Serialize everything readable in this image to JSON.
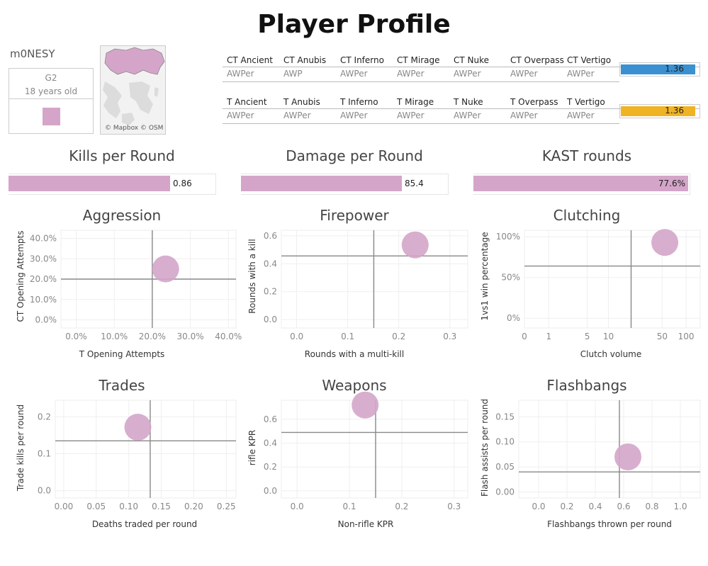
{
  "page": {
    "title": "Player Profile"
  },
  "player": {
    "name": "m0NESY",
    "team": "G2",
    "age": "18 years old",
    "color": "#d4a5c9"
  },
  "map": {
    "credit": "© Mapbox © OSM",
    "country_fill": "#d4a5c9"
  },
  "role_table": {
    "ct_headers": [
      "CT Ancient",
      "CT Anubis",
      "CT Inferno",
      "CT Mirage",
      "CT Nuke",
      "CT Overpass",
      "CT Vertigo"
    ],
    "ct_values": [
      "AWPer",
      "AWP",
      "AWPer",
      "AWPer",
      "AWPer",
      "AWPer",
      "AWPer"
    ],
    "ct_rating": {
      "value": 1.36,
      "label": "1.36",
      "color": "#3a90d0"
    },
    "t_headers": [
      "T Ancient",
      "T Anubis",
      "T Inferno",
      "T Mirage",
      "T Nuke",
      "T Overpass",
      "T Vertigo"
    ],
    "t_values": [
      "AWPer",
      "AWPer",
      "AWPer",
      "AWPer",
      "AWPer",
      "AWPer",
      "AWPer"
    ],
    "t_rating": {
      "value": 1.36,
      "label": "1.36",
      "color": "#f0b323"
    },
    "rating_max": 1.4
  },
  "chart_data": [
    {
      "type": "bar",
      "title": "Kills per Round",
      "values": [
        0.86
      ],
      "value_label": "0.86",
      "xlim": [
        0,
        1.1
      ],
      "color": "#d4a5c9",
      "label_inside": false
    },
    {
      "type": "bar",
      "title": "Damage per Round",
      "values": [
        85.4
      ],
      "value_label": "85.4",
      "xlim": [
        0,
        110
      ],
      "color": "#d4a5c9",
      "label_inside": false
    },
    {
      "type": "bar",
      "title": "KAST rounds",
      "values": [
        77.6
      ],
      "value_label": "77.6%",
      "xlim": [
        0,
        78
      ],
      "color": "#d4a5c9",
      "label_inside": true
    },
    {
      "type": "scatter",
      "title": "Aggression",
      "xlabel": "T Opening Attempts",
      "ylabel": "CT Opening Attempts",
      "xlim": [
        -4,
        42
      ],
      "ylim": [
        -4,
        44
      ],
      "scale": "linear",
      "xticks": [
        0,
        10,
        20,
        30,
        40
      ],
      "xtick_labels": [
        "0.0%",
        "10.0%",
        "20.0%",
        "30.0%",
        "40.0%"
      ],
      "yticks": [
        0,
        10,
        20,
        30,
        40
      ],
      "ytick_labels": [
        "0.0%",
        "10.0%",
        "20.0%",
        "30.0%",
        "40.0%"
      ],
      "point": [
        23.5,
        25
      ],
      "ref_x": 20.0,
      "ref_y": 20.0
    },
    {
      "type": "scatter",
      "title": "Firepower",
      "xlabel": "Rounds with a multi-kill",
      "ylabel": "Rounds with a kill",
      "xlim": [
        -0.03,
        0.335
      ],
      "ylim": [
        -0.06,
        0.64
      ],
      "scale": "linear",
      "xticks": [
        0,
        0.1,
        0.2,
        0.3
      ],
      "xtick_labels": [
        "0.0",
        "0.1",
        "0.2",
        "0.3"
      ],
      "yticks": [
        0,
        0.2,
        0.4,
        0.6
      ],
      "ytick_labels": [
        "0.0",
        "0.2",
        "0.4",
        "0.6"
      ],
      "point": [
        0.232,
        0.535
      ],
      "ref_x": 0.151,
      "ref_y": 0.456
    },
    {
      "type": "scatter",
      "title": "Clutching",
      "xlabel": "Clutch volume",
      "ylabel": "1vs1 win percentage",
      "xlim": [
        0,
        150
      ],
      "ylim": [
        -0.12,
        1.08
      ],
      "scale": "symlog",
      "xticks": [
        0,
        1,
        5,
        10,
        50,
        100
      ],
      "xtick_labels": [
        "0",
        "1",
        "5",
        "10",
        "50",
        "100"
      ],
      "yticks": [
        0,
        0.5,
        1.0
      ],
      "ytick_labels": [
        "0%",
        "50%",
        "100%"
      ],
      "point": [
        54,
        0.93
      ],
      "ref_x": 20,
      "ref_y": 0.64
    },
    {
      "type": "scatter",
      "title": "Trades",
      "xlabel": "Deaths traded per round",
      "ylabel": "Trade kills per round",
      "xlim": [
        -0.013,
        0.265
      ],
      "ylim": [
        -0.02,
        0.245
      ],
      "scale": "linear",
      "xticks": [
        0,
        0.05,
        0.1,
        0.15,
        0.2,
        0.25
      ],
      "xtick_labels": [
        "0.00",
        "0.05",
        "0.10",
        "0.15",
        "0.20",
        "0.25"
      ],
      "yticks": [
        0,
        0.1,
        0.2
      ],
      "ytick_labels": [
        "0.0",
        "0.1",
        "0.2"
      ],
      "point": [
        0.114,
        0.172
      ],
      "ref_x": 0.133,
      "ref_y": 0.135
    },
    {
      "type": "scatter",
      "title": "Weapons",
      "xlabel": "Non-rifle KPR",
      "ylabel": "rifle KPR",
      "xlim": [
        -0.03,
        0.326
      ],
      "ylim": [
        -0.06,
        0.76
      ],
      "scale": "linear",
      "xticks": [
        0,
        0.1,
        0.2,
        0.3
      ],
      "xtick_labels": [
        "0.0",
        "0.1",
        "0.2",
        "0.3"
      ],
      "yticks": [
        0,
        0.2,
        0.4,
        0.6
      ],
      "ytick_labels": [
        "0.0",
        "0.2",
        "0.4",
        "0.6"
      ],
      "point": [
        0.13,
        0.72
      ],
      "ref_x": 0.15,
      "ref_y": 0.49
    },
    {
      "type": "scatter",
      "title": "Flashbangs",
      "xlabel": "Flashbangs thrown per round",
      "ylabel": "Flash assists per round",
      "xlim": [
        -0.14,
        1.14
      ],
      "ylim": [
        -0.012,
        0.183
      ],
      "scale": "linear",
      "xticks": [
        0,
        0.2,
        0.4,
        0.6,
        0.8,
        1.0
      ],
      "xtick_labels": [
        "0.0",
        "0.2",
        "0.4",
        "0.6",
        "0.8",
        "1.0"
      ],
      "yticks": [
        0,
        0.05,
        0.1,
        0.15
      ],
      "ytick_labels": [
        "0.00",
        "0.05",
        "0.10",
        "0.15"
      ],
      "point": [
        0.63,
        0.07
      ],
      "ref_x": 0.57,
      "ref_y": 0.04
    }
  ]
}
